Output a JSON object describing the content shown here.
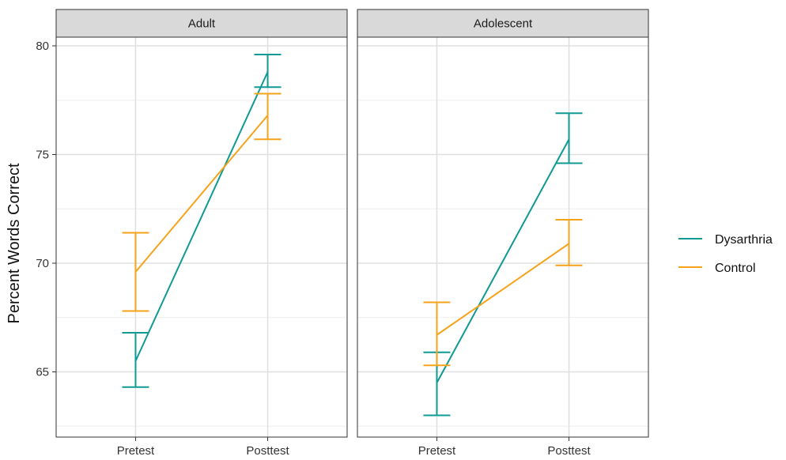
{
  "chart_data": {
    "type": "line",
    "ylabel": "Percent Words Correct",
    "xlabel": "",
    "categories": [
      "Pretest",
      "Posttest"
    ],
    "ylim": [
      62.0,
      80.4
    ],
    "yticks": [
      65,
      70,
      75,
      80
    ],
    "grid": true,
    "legend_position": "right",
    "panels": [
      {
        "label": "Adult",
        "series": [
          {
            "name": "Dysarthria",
            "color": "#0f9a94",
            "values": [
              65.5,
              78.8
            ],
            "lower": [
              64.3,
              78.1
            ],
            "upper": [
              66.8,
              79.6
            ]
          },
          {
            "name": "Control",
            "color": "#f5a31a",
            "values": [
              69.6,
              76.8
            ],
            "lower": [
              67.8,
              75.7
            ],
            "upper": [
              71.4,
              77.8
            ]
          }
        ]
      },
      {
        "label": "Adolescent",
        "series": [
          {
            "name": "Dysarthria",
            "color": "#0f9a94",
            "values": [
              64.5,
              75.7
            ],
            "lower": [
              63.0,
              74.6
            ],
            "upper": [
              65.9,
              76.9
            ]
          },
          {
            "name": "Control",
            "color": "#f5a31a",
            "values": [
              66.7,
              70.9
            ],
            "lower": [
              65.3,
              69.9
            ],
            "upper": [
              68.2,
              72.0
            ]
          }
        ]
      }
    ]
  }
}
